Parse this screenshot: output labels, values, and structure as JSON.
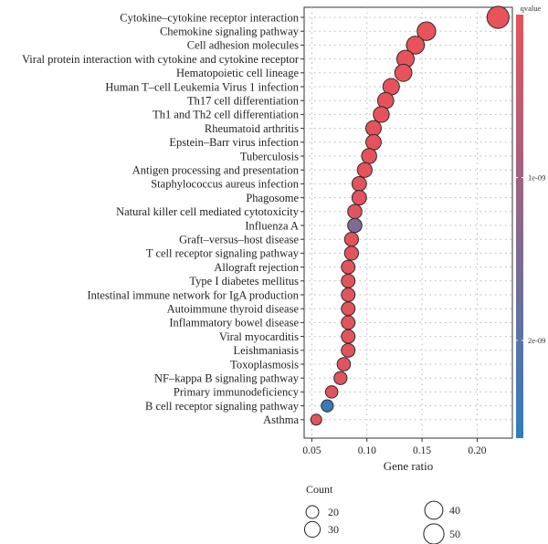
{
  "chart_data": {
    "type": "scatter",
    "xlabel": "Gene ratio",
    "x_ticks": [
      0.05,
      0.1,
      0.15,
      0.2
    ],
    "x_tick_labels": [
      "0.05",
      "0.10",
      "0.15",
      "0.20"
    ],
    "xlim": [
      0.043,
      0.232
    ],
    "grid": true,
    "categories": [
      "Cytokine–cytokine receptor interaction",
      "Chemokine signaling pathway",
      "Cell adhesion molecules",
      "Viral protein interaction with cytokine and cytokine receptor",
      "Hematopoietic cell lineage",
      "Human T–cell Leukemia Virus 1 infection",
      "Th17 cell differentiation",
      "Th1 and Th2 cell differentiation",
      "Rheumatoid arthritis",
      "Epstein–Barr virus infection",
      "Tuberculosis",
      "Antigen processing and presentation",
      "Staphylococcus aureus infection",
      "Phagosome",
      "Natural killer cell mediated cytotoxicity",
      "Influenza A",
      "Graft–versus–host disease",
      "T cell receptor signaling pathway",
      "Allograft rejection",
      "Type I diabetes mellitus",
      "Intestinal immune network for IgA production",
      "Autoimmune thyroid disease",
      "Inflammatory bowel disease",
      "Viral myocarditis",
      "Leishmaniasis",
      "Toxoplasmosis",
      "NF–kappa B signaling pathway",
      "Primary immunodeficiency",
      "B cell receptor signaling pathway",
      "Asthma"
    ],
    "gene_ratio": [
      0.219,
      0.154,
      0.144,
      0.135,
      0.133,
      0.122,
      0.117,
      0.113,
      0.106,
      0.106,
      0.102,
      0.098,
      0.093,
      0.093,
      0.089,
      0.089,
      0.086,
      0.086,
      0.083,
      0.083,
      0.083,
      0.083,
      0.083,
      0.083,
      0.083,
      0.079,
      0.076,
      0.068,
      0.064,
      0.054
    ],
    "count": [
      59,
      42,
      39,
      37,
      36,
      33,
      32,
      31,
      29,
      29,
      28,
      27,
      26,
      26,
      25,
      25,
      24,
      24,
      23,
      23,
      23,
      23,
      23,
      23,
      23,
      22,
      21,
      19,
      18,
      15
    ],
    "qvalue": [
      1e-12,
      1e-12,
      1e-12,
      1e-12,
      1e-12,
      1e-11,
      1e-11,
      1e-11,
      1e-11,
      1e-11,
      5e-11,
      5e-11,
      1e-10,
      1e-10,
      1e-10,
      1.5e-09,
      1e-10,
      1e-10,
      1e-10,
      1e-10,
      1e-10,
      1e-10,
      1e-10,
      1e-10,
      1e-10,
      1e-10,
      1e-10,
      1e-10,
      2.5e-09,
      1e-10
    ],
    "color_legend": {
      "title": "qvalue",
      "labels": [
        "1e-09",
        "2e-09"
      ],
      "label_values": [
        1e-09,
        2e-09
      ],
      "range": [
        0,
        2.6e-09
      ],
      "low_color": "#e8525a",
      "high_color": "#2f7dbd"
    },
    "size_legend": {
      "title": "Count",
      "entries": [
        20,
        30,
        40,
        50
      ],
      "labels": [
        "20",
        "30",
        "40",
        "50"
      ]
    },
    "point_edge_color": "#2a2a2a",
    "legend_placement": "right (color bar), bottom (size)"
  }
}
